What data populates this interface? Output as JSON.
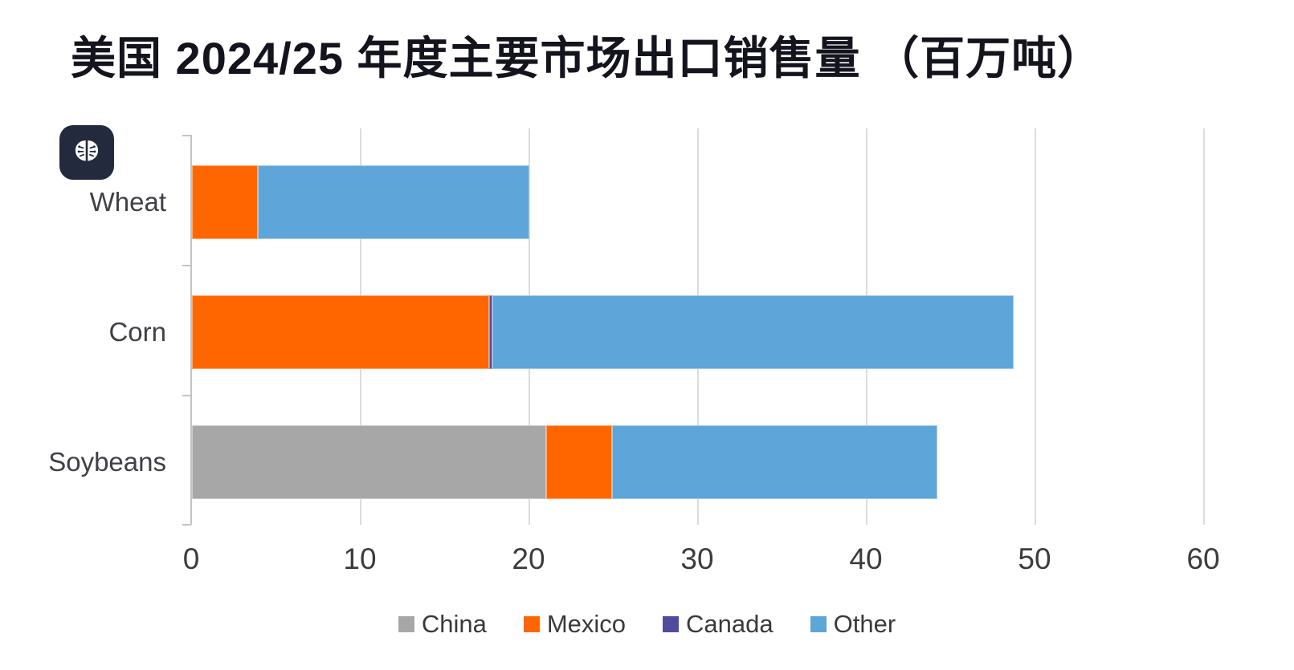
{
  "title": "美国 2024/25 年度主要市场出口销售量 （百万吨）",
  "icon": {
    "name": "brain-icon",
    "background": "#232a3d",
    "glyph_color": "#ffffff"
  },
  "chart_data": {
    "type": "bar",
    "orientation": "horizontal",
    "stacked": true,
    "title": "美国 2024/25 年度主要市场出口销售量 （百万吨）",
    "categories": [
      "Wheat",
      "Corn",
      "Soybeans"
    ],
    "series": [
      {
        "name": "China",
        "color": "#a7a7a7",
        "values": [
          0,
          0,
          21.0
        ]
      },
      {
        "name": "Mexico",
        "color": "#ff6600",
        "values": [
          3.9,
          17.6,
          3.9
        ]
      },
      {
        "name": "Canada",
        "color": "#504c9d",
        "values": [
          0,
          0.2,
          0
        ]
      },
      {
        "name": "Other",
        "color": "#5ea5d9",
        "values": [
          16.1,
          30.9,
          19.3
        ]
      }
    ],
    "totals": [
      20.0,
      48.7,
      44.2
    ],
    "x_ticks": [
      0,
      10,
      20,
      30,
      40,
      50,
      60
    ],
    "xlim": [
      0,
      60
    ],
    "xlabel": "",
    "ylabel": "",
    "grid": "vertical",
    "legend_position": "bottom",
    "colors": {
      "gridline": "#dcdcdc",
      "axis": "#c3c3c3",
      "tick_text": "#3c3c3c",
      "category_text": "#3f3f46",
      "title_text": "#14141f"
    }
  }
}
